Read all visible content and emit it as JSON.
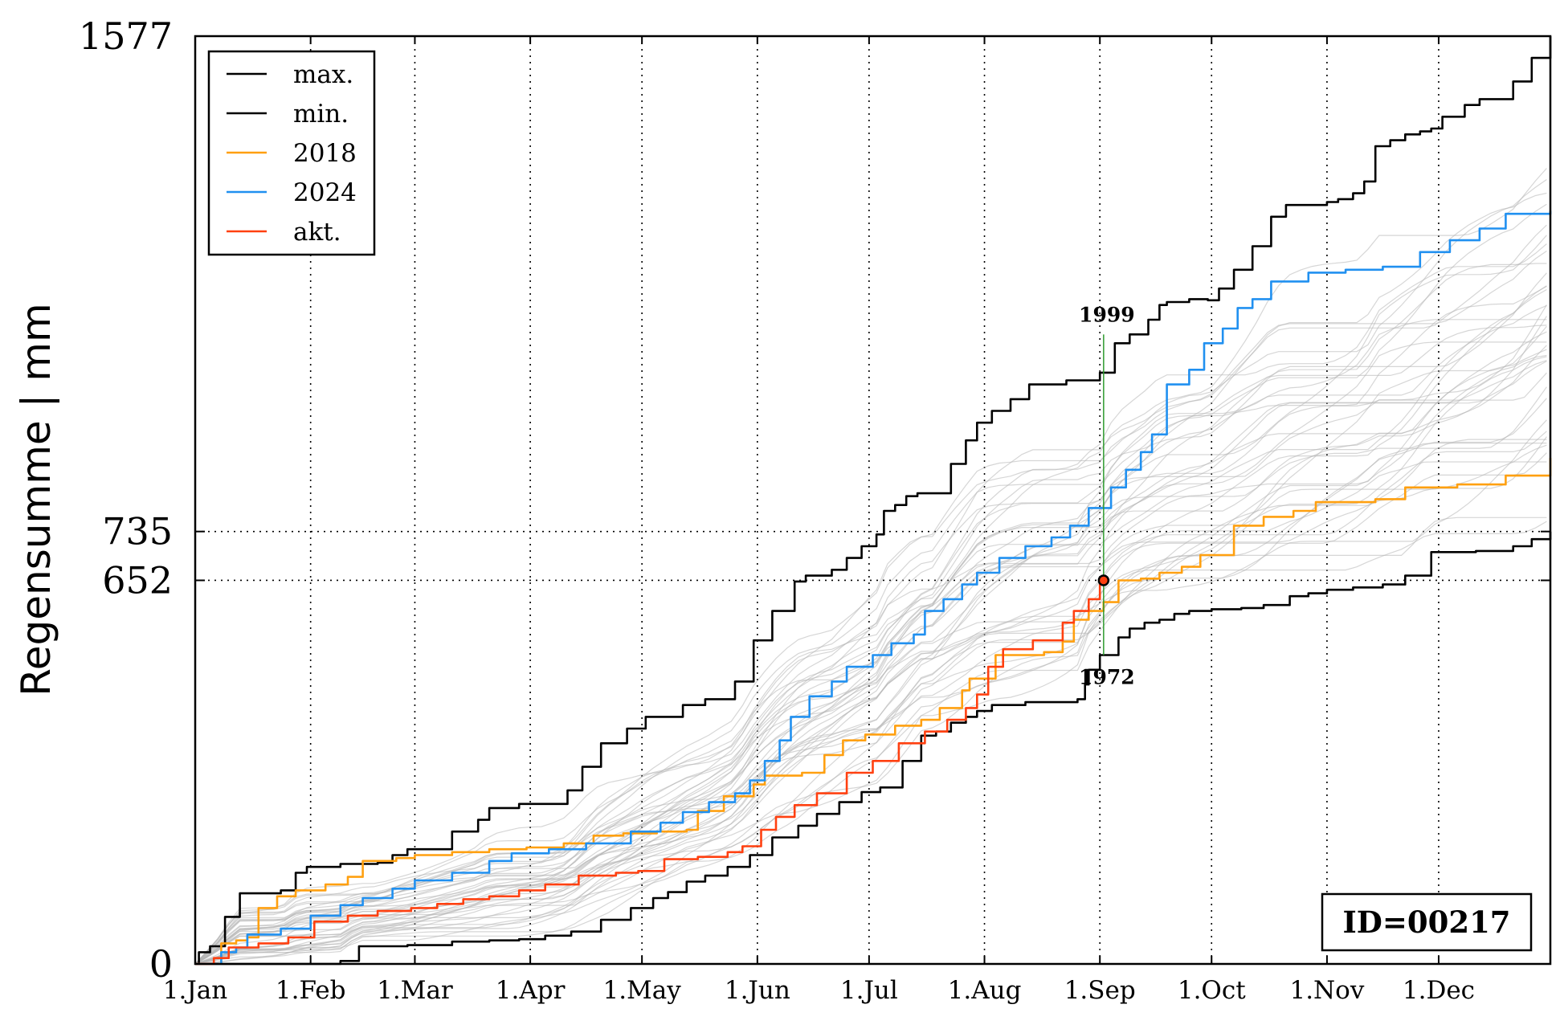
{
  "chart_data": {
    "type": "line",
    "title": "",
    "xlabel": "",
    "ylabel": "Regensumme | mm",
    "x_domain": [
      "1.Jan",
      "31.Dec"
    ],
    "ylim": [
      0,
      1577
    ],
    "x_ticks": [
      "1.Jan",
      "1.Feb",
      "1.Mar",
      "1.Apr",
      "1.May",
      "1.Jun",
      "1.Jul",
      "1.Aug",
      "1.Sep",
      "1.Oct",
      "1.Nov",
      "1.Dec"
    ],
    "y_ticks": [
      0,
      652,
      735,
      1577
    ],
    "x_grid": true,
    "y_reference_lines": [
      652,
      735
    ],
    "legend": {
      "position": "top-left",
      "entries": [
        "max.",
        "min.",
        "2018",
        "2024",
        "akt."
      ]
    },
    "series": [
      {
        "name": "max.",
        "color": "#000000",
        "points": [
          [
            1,
            0
          ],
          [
            2,
            20
          ],
          [
            5,
            30
          ],
          [
            9,
            80
          ],
          [
            13,
            120
          ],
          [
            24,
            125
          ],
          [
            28,
            155
          ],
          [
            31,
            165
          ],
          [
            40,
            170
          ],
          [
            50,
            172
          ],
          [
            54,
            185
          ],
          [
            58,
            195
          ],
          [
            70,
            225
          ],
          [
            77,
            245
          ],
          [
            80,
            265
          ],
          [
            88,
            272
          ],
          [
            95,
            272
          ],
          [
            101,
            295
          ],
          [
            105,
            335
          ],
          [
            110,
            375
          ],
          [
            117,
            400
          ],
          [
            122,
            420
          ],
          [
            132,
            440
          ],
          [
            138,
            450
          ],
          [
            146,
            480
          ],
          [
            151,
            550
          ],
          [
            156,
            600
          ],
          [
            162,
            650
          ],
          [
            165,
            660
          ],
          [
            172,
            670
          ],
          [
            176,
            690
          ],
          [
            180,
            710
          ],
          [
            184,
            730
          ],
          [
            186,
            770
          ],
          [
            189,
            780
          ],
          [
            192,
            795
          ],
          [
            195,
            800
          ],
          [
            199,
            800
          ],
          [
            204,
            850
          ],
          [
            208,
            890
          ],
          [
            211,
            920
          ],
          [
            215,
            940
          ],
          [
            220,
            960
          ],
          [
            225,
            985
          ],
          [
            235,
            992
          ],
          [
            244,
            1005
          ],
          [
            248,
            1055
          ],
          [
            252,
            1070
          ],
          [
            257,
            1095
          ],
          [
            260,
            1120
          ],
          [
            262,
            1125
          ],
          [
            268,
            1130
          ],
          [
            273,
            1128
          ],
          [
            276,
            1148
          ],
          [
            280,
            1180
          ],
          [
            285,
            1220
          ],
          [
            290,
            1270
          ],
          [
            294,
            1290
          ],
          [
            305,
            1295
          ],
          [
            308,
            1300
          ],
          [
            312,
            1310
          ],
          [
            315,
            1330
          ],
          [
            318,
            1390
          ],
          [
            322,
            1400
          ],
          [
            326,
            1410
          ],
          [
            330,
            1415
          ],
          [
            333,
            1420
          ],
          [
            336,
            1440
          ],
          [
            342,
            1460
          ],
          [
            346,
            1470
          ],
          [
            355,
            1500
          ],
          [
            360,
            1540
          ],
          [
            365,
            1577
          ]
        ]
      },
      {
        "name": "min.",
        "color": "#000000",
        "points": [
          [
            1,
            0
          ],
          [
            30,
            0
          ],
          [
            40,
            5
          ],
          [
            45,
            30
          ],
          [
            58,
            32
          ],
          [
            70,
            38
          ],
          [
            80,
            40
          ],
          [
            88,
            42
          ],
          [
            95,
            48
          ],
          [
            102,
            55
          ],
          [
            110,
            75
          ],
          [
            118,
            95
          ],
          [
            124,
            112
          ],
          [
            128,
            122
          ],
          [
            133,
            140
          ],
          [
            138,
            150
          ],
          [
            144,
            165
          ],
          [
            150,
            185
          ],
          [
            156,
            215
          ],
          [
            163,
            235
          ],
          [
            168,
            255
          ],
          [
            174,
            275
          ],
          [
            180,
            292
          ],
          [
            185,
            300
          ],
          [
            191,
            345
          ],
          [
            196,
            388
          ],
          [
            200,
            395
          ],
          [
            204,
            410
          ],
          [
            208,
            420
          ],
          [
            211,
            430
          ],
          [
            215,
            440
          ],
          [
            224,
            445
          ],
          [
            234,
            445
          ],
          [
            238,
            450
          ],
          [
            240,
            475
          ],
          [
            241,
            500
          ],
          [
            244,
            525
          ],
          [
            249,
            555
          ],
          [
            252,
            570
          ],
          [
            256,
            580
          ],
          [
            260,
            585
          ],
          [
            264,
            595
          ],
          [
            268,
            600
          ],
          [
            274,
            603
          ],
          [
            282,
            605
          ],
          [
            288,
            610
          ],
          [
            295,
            625
          ],
          [
            300,
            630
          ],
          [
            305,
            636
          ],
          [
            312,
            640
          ],
          [
            320,
            645
          ],
          [
            326,
            660
          ],
          [
            333,
            700
          ],
          [
            345,
            702
          ],
          [
            355,
            710
          ],
          [
            360,
            722
          ],
          [
            365,
            735
          ]
        ]
      },
      {
        "name": "2018",
        "color": "#ffa010",
        "points": [
          [
            1,
            0
          ],
          [
            8,
            35
          ],
          [
            12,
            40
          ],
          [
            15,
            45
          ],
          [
            18,
            95
          ],
          [
            23,
            115
          ],
          [
            28,
            125
          ],
          [
            36,
            135
          ],
          [
            42,
            148
          ],
          [
            46,
            175
          ],
          [
            55,
            180
          ],
          [
            60,
            185
          ],
          [
            70,
            190
          ],
          [
            80,
            195
          ],
          [
            90,
            198
          ],
          [
            100,
            205
          ],
          [
            108,
            218
          ],
          [
            116,
            222
          ],
          [
            125,
            225
          ],
          [
            133,
            228
          ],
          [
            136,
            260
          ],
          [
            143,
            285
          ],
          [
            151,
            305
          ],
          [
            154,
            320
          ],
          [
            164,
            325
          ],
          [
            170,
            355
          ],
          [
            175,
            380
          ],
          [
            181,
            390
          ],
          [
            189,
            405
          ],
          [
            196,
            415
          ],
          [
            201,
            435
          ],
          [
            207,
            465
          ],
          [
            209,
            485
          ],
          [
            216,
            525
          ],
          [
            229,
            530
          ],
          [
            234,
            548
          ],
          [
            237,
            585
          ],
          [
            241,
            600
          ],
          [
            245,
            615
          ],
          [
            249,
            652
          ],
          [
            255,
            655
          ],
          [
            260,
            665
          ],
          [
            266,
            675
          ],
          [
            271,
            695
          ],
          [
            280,
            745
          ],
          [
            288,
            760
          ],
          [
            296,
            770
          ],
          [
            302,
            785
          ],
          [
            318,
            790
          ],
          [
            326,
            810
          ],
          [
            340,
            815
          ],
          [
            353,
            830
          ],
          [
            365,
            860
          ]
        ]
      },
      {
        "name": "2024",
        "color": "#2090f0",
        "points": [
          [
            1,
            0
          ],
          [
            8,
            20
          ],
          [
            12,
            28
          ],
          [
            15,
            50
          ],
          [
            24,
            60
          ],
          [
            32,
            82
          ],
          [
            40,
            100
          ],
          [
            46,
            112
          ],
          [
            54,
            128
          ],
          [
            60,
            142
          ],
          [
            70,
            155
          ],
          [
            80,
            175
          ],
          [
            86,
            188
          ],
          [
            96,
            195
          ],
          [
            106,
            205
          ],
          [
            118,
            225
          ],
          [
            126,
            240
          ],
          [
            132,
            258
          ],
          [
            139,
            275
          ],
          [
            146,
            290
          ],
          [
            150,
            312
          ],
          [
            154,
            345
          ],
          [
            158,
            380
          ],
          [
            161,
            420
          ],
          [
            166,
            455
          ],
          [
            172,
            480
          ],
          [
            176,
            505
          ],
          [
            183,
            525
          ],
          [
            188,
            545
          ],
          [
            194,
            560
          ],
          [
            197,
            600
          ],
          [
            202,
            620
          ],
          [
            207,
            645
          ],
          [
            211,
            665
          ],
          [
            217,
            690
          ],
          [
            224,
            710
          ],
          [
            231,
            725
          ],
          [
            236,
            745
          ],
          [
            241,
            775
          ],
          [
            247,
            810
          ],
          [
            251,
            840
          ],
          [
            255,
            870
          ],
          [
            258,
            900
          ],
          [
            262,
            985
          ],
          [
            268,
            1010
          ],
          [
            272,
            1055
          ],
          [
            277,
            1080
          ],
          [
            281,
            1115
          ],
          [
            285,
            1130
          ],
          [
            290,
            1160
          ],
          [
            300,
            1175
          ],
          [
            310,
            1180
          ],
          [
            320,
            1185
          ],
          [
            330,
            1210
          ],
          [
            338,
            1230
          ],
          [
            346,
            1250
          ],
          [
            353,
            1275
          ],
          [
            365,
            1280
          ]
        ]
      },
      {
        "name": "akt.",
        "color": "#ff4010",
        "points": [
          [
            1,
            0
          ],
          [
            6,
            10
          ],
          [
            10,
            28
          ],
          [
            18,
            35
          ],
          [
            26,
            45
          ],
          [
            33,
            72
          ],
          [
            42,
            82
          ],
          [
            50,
            90
          ],
          [
            59,
            95
          ],
          [
            66,
            102
          ],
          [
            73,
            110
          ],
          [
            80,
            115
          ],
          [
            88,
            125
          ],
          [
            95,
            135
          ],
          [
            104,
            150
          ],
          [
            114,
            155
          ],
          [
            120,
            158
          ],
          [
            127,
            178
          ],
          [
            136,
            182
          ],
          [
            144,
            190
          ],
          [
            148,
            200
          ],
          [
            153,
            228
          ],
          [
            157,
            250
          ],
          [
            162,
            270
          ],
          [
            168,
            290
          ],
          [
            176,
            325
          ],
          [
            183,
            345
          ],
          [
            190,
            375
          ],
          [
            197,
            395
          ],
          [
            203,
            415
          ],
          [
            208,
            435
          ],
          [
            211,
            458
          ],
          [
            214,
            505
          ],
          [
            218,
            535
          ],
          [
            226,
            550
          ],
          [
            234,
            580
          ],
          [
            237,
            600
          ],
          [
            241,
            620
          ],
          [
            244,
            652
          ]
        ]
      }
    ],
    "current_marker": {
      "x": 245,
      "y": 652
    },
    "annotations": [
      {
        "text": "1999",
        "x": 245,
        "y": 1070
      },
      {
        "text": "1972",
        "x": 245,
        "y": 525
      }
    ],
    "id_label": "ID=00217"
  }
}
